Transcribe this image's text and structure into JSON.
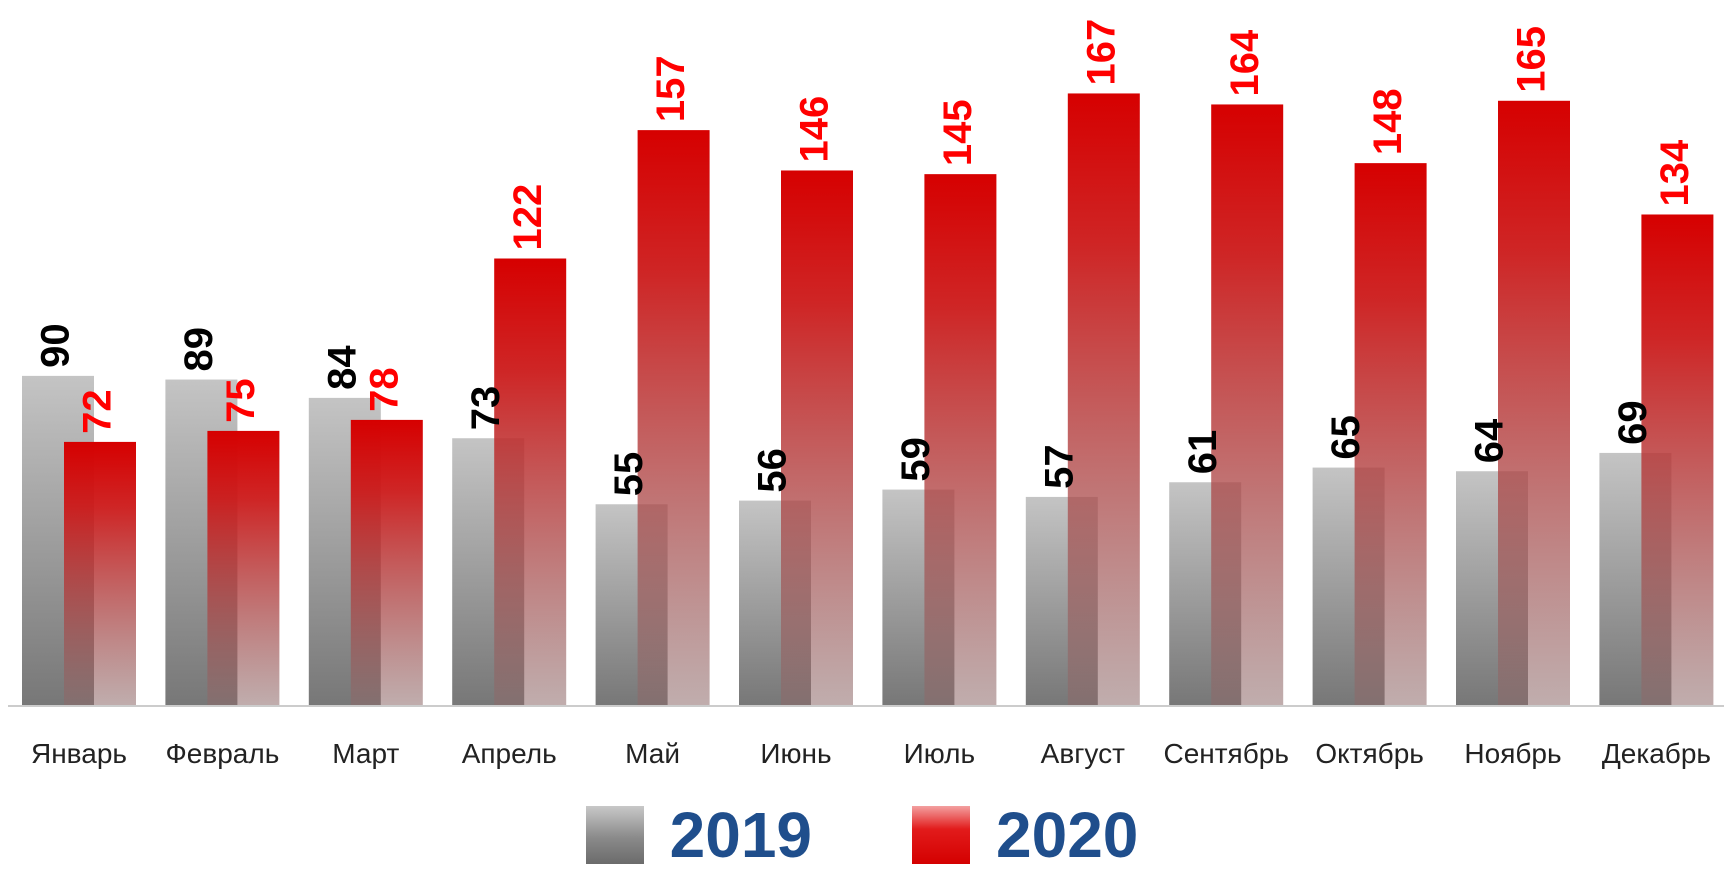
{
  "chart_data": {
    "type": "bar",
    "categories": [
      "Январь",
      "Февраль",
      "Март",
      "Апрель",
      "Май",
      "Июнь",
      "Июль",
      "Август",
      "Сентябрь",
      "Октябрь",
      "Ноябрь",
      "Декабрь"
    ],
    "series": [
      {
        "name": "2019",
        "values": [
          90,
          89,
          84,
          73,
          55,
          56,
          59,
          57,
          61,
          65,
          64,
          69
        ],
        "color": "#808080",
        "label_color": "#000000"
      },
      {
        "name": "2020",
        "values": [
          72,
          75,
          78,
          122,
          157,
          146,
          145,
          167,
          164,
          148,
          165,
          134
        ],
        "color": "#d40000",
        "label_color": "#ff0000"
      }
    ],
    "title": "",
    "xlabel": "",
    "ylabel": "",
    "ylim": [
      0,
      170
    ],
    "grid": false,
    "legend_position": "bottom-center",
    "legend_text_color": "#1f4e8c",
    "data_labels": "vertical"
  }
}
